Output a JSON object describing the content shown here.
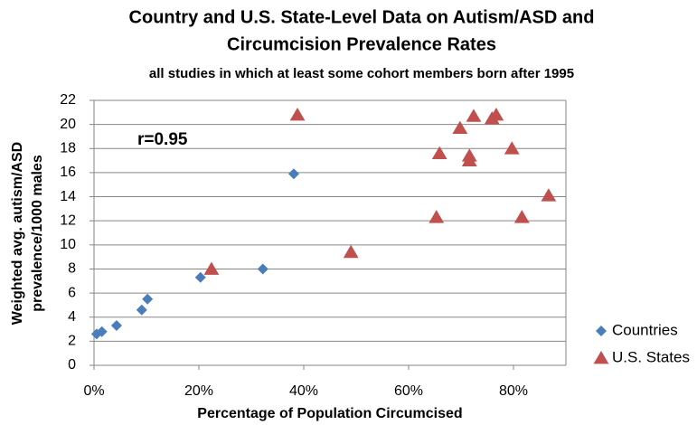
{
  "chart_data": {
    "type": "scatter",
    "title": [
      "Country and U.S. State-Level Data on Autism/ASD and",
      "Circumcision Prevalence Rates"
    ],
    "subtitle": "all studies in which at least some cohort members born after 1995",
    "x_label": "Percentage of Population Circumcised",
    "y_label": [
      "Weighted avg.  autism/ASD",
      "prevalence/1000 males"
    ],
    "annotation": "r=0.95",
    "xlim": [
      0,
      90
    ],
    "ylim": [
      0,
      22
    ],
    "xticks": [
      {
        "value": 0,
        "label": "0%"
      },
      {
        "value": 20,
        "label": "20%"
      },
      {
        "value": 40,
        "label": "40%"
      },
      {
        "value": 60,
        "label": "60%"
      },
      {
        "value": 80,
        "label": "80%"
      }
    ],
    "yticks": [
      0,
      2,
      4,
      6,
      8,
      10,
      12,
      14,
      16,
      18,
      20,
      22
    ],
    "grid": true,
    "legend": "right",
    "series": [
      {
        "name": "Countries",
        "color": "#4a7ebb",
        "marker": "diamond",
        "x": [
          0.5,
          1.5,
          4.3,
          9.1,
          10.2,
          20.3,
          32.2,
          38.1
        ],
        "values": [
          2.6,
          2.8,
          3.3,
          4.6,
          5.5,
          7.3,
          8.0,
          15.9
        ]
      },
      {
        "name": "U.S. States",
        "color": "#c0504d",
        "marker": "triangle",
        "x": [
          22.4,
          38.8,
          49.0,
          65.3,
          65.9,
          69.8,
          71.6,
          71.6,
          72.4,
          75.9,
          76.7,
          79.7,
          81.6,
          86.7
        ],
        "values": [
          8.0,
          20.8,
          9.4,
          12.3,
          17.6,
          19.7,
          17.4,
          17.0,
          20.7,
          20.5,
          20.8,
          18.0,
          12.3,
          14.1
        ]
      }
    ]
  }
}
